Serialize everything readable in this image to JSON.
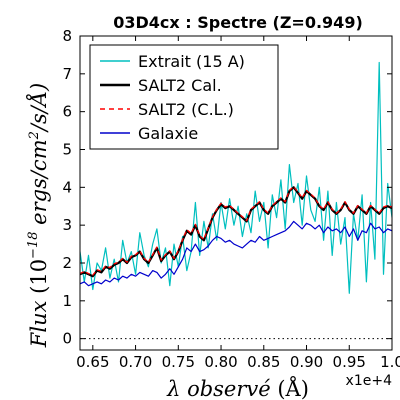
{
  "chart_data": {
    "type": "line",
    "title": "03D4cx : Spectre (Z=0.949)",
    "xlabel": "λ observé (Å)",
    "ylabel": "Flux (10^-18 ergs/cm²/s/Å)",
    "xlim": [
      0.635,
      1.0
    ],
    "ylim": [
      -0.3,
      8.0
    ],
    "x_offset_label": "x1e+4",
    "x_ticks": [
      0.65,
      0.7,
      0.75,
      0.8,
      0.85,
      0.9,
      0.95,
      1.0
    ],
    "x_tick_labels": [
      "0.65",
      "0.70",
      "0.75",
      "0.80",
      "0.85",
      "0.90",
      "0.95",
      "1.0"
    ],
    "y_ticks": [
      0,
      1,
      2,
      3,
      4,
      5,
      6,
      7,
      8
    ],
    "y_tick_labels": [
      "0",
      "1",
      "2",
      "3",
      "4",
      "5",
      "6",
      "7",
      "8"
    ],
    "legend_position": "upper-left",
    "reference_line": {
      "y": 0,
      "style": "dotted",
      "color": "#000000"
    },
    "series": [
      {
        "name": "Extrait (15 A)",
        "color": "#00bfbf",
        "style": "solid-thin",
        "x": [
          0.635,
          0.64,
          0.645,
          0.65,
          0.655,
          0.66,
          0.665,
          0.67,
          0.675,
          0.68,
          0.685,
          0.69,
          0.695,
          0.7,
          0.705,
          0.71,
          0.715,
          0.72,
          0.725,
          0.73,
          0.735,
          0.74,
          0.745,
          0.75,
          0.755,
          0.76,
          0.765,
          0.77,
          0.775,
          0.78,
          0.785,
          0.79,
          0.795,
          0.8,
          0.805,
          0.81,
          0.815,
          0.82,
          0.825,
          0.83,
          0.835,
          0.84,
          0.845,
          0.85,
          0.855,
          0.86,
          0.865,
          0.87,
          0.875,
          0.88,
          0.885,
          0.89,
          0.895,
          0.9,
          0.905,
          0.91,
          0.915,
          0.92,
          0.925,
          0.93,
          0.935,
          0.94,
          0.945,
          0.95,
          0.955,
          0.96,
          0.965,
          0.97,
          0.975,
          0.98,
          0.985,
          0.99,
          0.995,
          1.0
        ],
        "y": [
          2.3,
          1.5,
          2.2,
          1.3,
          2.0,
          1.8,
          2.4,
          1.6,
          2.1,
          1.5,
          2.6,
          2.0,
          2.3,
          1.7,
          2.8,
          2.2,
          1.9,
          2.5,
          2.9,
          2.0,
          2.4,
          1.4,
          2.5,
          1.9,
          2.7,
          1.8,
          2.3,
          3.6,
          2.2,
          3.1,
          2.4,
          3.3,
          2.6,
          3.6,
          2.9,
          3.7,
          3.0,
          3.5,
          2.7,
          3.3,
          2.8,
          3.9,
          3.1,
          3.6,
          2.4,
          3.8,
          3.2,
          4.2,
          2.9,
          4.6,
          3.6,
          4.1,
          3.0,
          4.3,
          3.4,
          3.1,
          4.0,
          2.6,
          3.9,
          2.2,
          3.6,
          2.5,
          3.2,
          1.2,
          3.3,
          2.6,
          3.8,
          1.5,
          3.6,
          2.1,
          7.3,
          1.7,
          4.1,
          3.2
        ]
      },
      {
        "name": "SALT2 Cal.",
        "color": "#000000",
        "style": "solid-thick",
        "x": [
          0.635,
          0.64,
          0.645,
          0.65,
          0.655,
          0.66,
          0.665,
          0.67,
          0.675,
          0.68,
          0.685,
          0.69,
          0.695,
          0.7,
          0.705,
          0.71,
          0.715,
          0.72,
          0.725,
          0.73,
          0.735,
          0.74,
          0.745,
          0.75,
          0.755,
          0.76,
          0.765,
          0.77,
          0.775,
          0.78,
          0.785,
          0.79,
          0.795,
          0.8,
          0.805,
          0.81,
          0.815,
          0.82,
          0.825,
          0.83,
          0.835,
          0.84,
          0.845,
          0.85,
          0.855,
          0.86,
          0.865,
          0.87,
          0.875,
          0.88,
          0.885,
          0.89,
          0.895,
          0.9,
          0.905,
          0.91,
          0.915,
          0.92,
          0.925,
          0.93,
          0.935,
          0.94,
          0.945,
          0.95,
          0.955,
          0.96,
          0.965,
          0.97,
          0.975,
          0.98,
          0.985,
          0.99,
          0.995,
          1.0
        ],
        "y": [
          1.7,
          1.75,
          1.7,
          1.65,
          1.8,
          1.75,
          1.9,
          1.85,
          1.95,
          2.0,
          2.1,
          2.0,
          2.15,
          2.2,
          2.3,
          2.1,
          2.0,
          2.2,
          2.4,
          2.05,
          2.2,
          2.3,
          2.1,
          2.3,
          2.6,
          2.85,
          2.75,
          3.0,
          2.7,
          2.6,
          2.9,
          3.2,
          3.4,
          3.55,
          3.45,
          3.5,
          3.4,
          3.3,
          3.2,
          3.1,
          3.4,
          3.5,
          3.6,
          3.4,
          3.3,
          3.5,
          3.6,
          3.7,
          3.6,
          3.9,
          4.0,
          3.85,
          3.7,
          3.9,
          3.8,
          3.7,
          3.5,
          3.4,
          3.6,
          3.4,
          3.3,
          3.4,
          3.6,
          3.4,
          3.3,
          3.5,
          3.4,
          3.3,
          3.5,
          3.4,
          3.3,
          3.45,
          3.5,
          3.45
        ]
      },
      {
        "name": "SALT2 (C.L.)",
        "color": "#ff0000",
        "style": "dashed",
        "x": [
          0.635,
          0.64,
          0.645,
          0.65,
          0.655,
          0.66,
          0.665,
          0.67,
          0.675,
          0.68,
          0.685,
          0.69,
          0.695,
          0.7,
          0.705,
          0.71,
          0.715,
          0.72,
          0.725,
          0.73,
          0.735,
          0.74,
          0.745,
          0.75,
          0.755,
          0.76,
          0.765,
          0.77,
          0.775,
          0.78,
          0.785,
          0.79,
          0.795,
          0.8,
          0.805,
          0.81,
          0.815,
          0.82,
          0.825,
          0.83,
          0.835,
          0.84,
          0.845,
          0.85,
          0.855,
          0.86,
          0.865,
          0.87,
          0.875,
          0.88,
          0.885,
          0.89,
          0.895,
          0.9,
          0.905,
          0.91,
          0.915,
          0.92,
          0.925,
          0.93,
          0.935,
          0.94,
          0.945,
          0.95,
          0.955,
          0.96,
          0.965,
          0.97,
          0.975,
          0.98,
          0.985,
          0.99,
          0.995,
          1.0
        ],
        "y": [
          1.72,
          1.78,
          1.72,
          1.68,
          1.82,
          1.78,
          1.92,
          1.88,
          1.98,
          2.02,
          2.12,
          2.02,
          2.18,
          2.22,
          2.32,
          2.12,
          2.02,
          2.22,
          2.42,
          2.08,
          2.22,
          2.32,
          2.12,
          2.32,
          2.62,
          2.88,
          2.78,
          3.02,
          2.72,
          2.62,
          2.92,
          3.22,
          3.42,
          3.58,
          3.48,
          3.52,
          3.42,
          3.32,
          3.22,
          3.12,
          3.42,
          3.52,
          3.62,
          3.42,
          3.32,
          3.52,
          3.62,
          3.72,
          3.62,
          3.92,
          4.02,
          3.88,
          3.72,
          3.92,
          3.82,
          3.72,
          3.52,
          3.42,
          3.62,
          3.42,
          3.32,
          3.42,
          3.62,
          3.42,
          3.32,
          3.52,
          3.42,
          3.32,
          3.52,
          3.42,
          3.32,
          3.48,
          3.52,
          3.48
        ]
      },
      {
        "name": "Galaxie",
        "color": "#0000cc",
        "style": "solid-thin",
        "x": [
          0.635,
          0.64,
          0.645,
          0.65,
          0.655,
          0.66,
          0.665,
          0.67,
          0.675,
          0.68,
          0.685,
          0.69,
          0.695,
          0.7,
          0.705,
          0.71,
          0.715,
          0.72,
          0.725,
          0.73,
          0.735,
          0.74,
          0.745,
          0.75,
          0.755,
          0.76,
          0.765,
          0.77,
          0.775,
          0.78,
          0.785,
          0.79,
          0.795,
          0.8,
          0.805,
          0.81,
          0.815,
          0.82,
          0.825,
          0.83,
          0.835,
          0.84,
          0.845,
          0.85,
          0.855,
          0.86,
          0.865,
          0.87,
          0.875,
          0.88,
          0.885,
          0.89,
          0.895,
          0.9,
          0.905,
          0.91,
          0.915,
          0.92,
          0.925,
          0.93,
          0.935,
          0.94,
          0.945,
          0.95,
          0.955,
          0.96,
          0.965,
          0.97,
          0.975,
          0.98,
          0.985,
          0.99,
          0.995,
          1.0
        ],
        "y": [
          1.45,
          1.5,
          1.4,
          1.45,
          1.5,
          1.45,
          1.55,
          1.5,
          1.6,
          1.55,
          1.65,
          1.6,
          1.7,
          1.65,
          1.75,
          1.7,
          1.65,
          1.8,
          1.75,
          1.6,
          1.7,
          1.85,
          1.7,
          1.9,
          2.1,
          2.4,
          2.3,
          2.5,
          2.3,
          2.35,
          2.45,
          2.6,
          2.7,
          2.65,
          2.55,
          2.6,
          2.5,
          2.45,
          2.4,
          2.5,
          2.6,
          2.55,
          2.7,
          2.6,
          2.65,
          2.7,
          2.75,
          2.8,
          2.85,
          2.95,
          3.1,
          3.0,
          2.9,
          3.05,
          3.0,
          2.9,
          3.0,
          2.8,
          2.95,
          2.85,
          2.9,
          2.8,
          2.95,
          2.7,
          2.9,
          2.6,
          2.85,
          2.8,
          3.05,
          2.9,
          2.95,
          2.8,
          2.9,
          2.85
        ]
      }
    ]
  }
}
